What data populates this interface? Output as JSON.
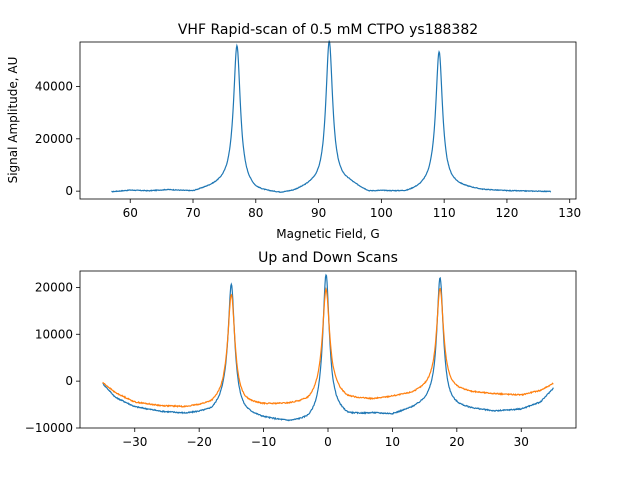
{
  "chart_data": [
    {
      "type": "line",
      "title": "VHF Rapid-scan of 0.5 mM CTPO ys188382",
      "xlabel": "Magnetic Field, G",
      "ylabel": "Signal Amplitude, AU",
      "xlim": [
        52,
        131
      ],
      "ylim": [
        -3000,
        57000
      ],
      "xticks": [
        60,
        70,
        80,
        90,
        100,
        110,
        120,
        130
      ],
      "yticks": [
        0,
        20000,
        40000
      ],
      "grid": false,
      "series": [
        {
          "color": "#1f77b4",
          "x_range": [
            57,
            127
          ],
          "baseline": [
            [
              57,
              -300
            ],
            [
              60,
              300
            ],
            [
              63,
              0
            ],
            [
              66,
              400
            ],
            [
              70,
              -300
            ],
            [
              73,
              1500
            ],
            [
              76,
              3500
            ],
            [
              80,
              -400
            ],
            [
              84,
              -1200
            ],
            [
              86,
              -500
            ],
            [
              89,
              1800
            ],
            [
              93,
              3000
            ],
            [
              95,
              2500
            ],
            [
              98,
              -600
            ],
            [
              100,
              -300
            ],
            [
              104,
              -600
            ],
            [
              106,
              600
            ],
            [
              108,
              2500
            ],
            [
              112,
              1500
            ],
            [
              116,
              300
            ],
            [
              120,
              0
            ],
            [
              124,
              -100
            ],
            [
              127,
              -200
            ]
          ],
          "peaks": [
            {
              "center": 77.0,
              "height": 53000,
              "width": 0.65
            },
            {
              "center": 91.7,
              "height": 54500,
              "width": 0.65
            },
            {
              "center": 109.2,
              "height": 51000,
              "width": 0.65
            }
          ]
        }
      ]
    },
    {
      "type": "line",
      "title": "Up and Down Scans",
      "xlabel": "",
      "ylabel": "",
      "xlim": [
        -38.5,
        38.5
      ],
      "ylim": [
        -10000,
        23500
      ],
      "xticks": [
        -30,
        -20,
        -10,
        0,
        10,
        20,
        30
      ],
      "yticks": [
        -10000,
        0,
        10000,
        20000
      ],
      "grid": false,
      "series": [
        {
          "color": "#1f77b4",
          "x_range": [
            -35,
            35
          ],
          "baseline": [
            [
              -35,
              -500
            ],
            [
              -33,
              -3500
            ],
            [
              -30,
              -5500
            ],
            [
              -26,
              -6500
            ],
            [
              -22,
              -7000
            ],
            [
              -18,
              -6500
            ],
            [
              -16,
              -4500
            ],
            [
              -13,
              -7000
            ],
            [
              -10,
              -8000
            ],
            [
              -6,
              -8800
            ],
            [
              -3,
              -8500
            ],
            [
              -1,
              -7000
            ],
            [
              1,
              -6500
            ],
            [
              3,
              -7500
            ],
            [
              7,
              -7000
            ],
            [
              10,
              -7200
            ],
            [
              13,
              -6000
            ],
            [
              16,
              -4500
            ],
            [
              19,
              -5500
            ],
            [
              22,
              -6000
            ],
            [
              26,
              -6500
            ],
            [
              30,
              -6000
            ],
            [
              33,
              -4500
            ],
            [
              35,
              -1500
            ]
          ],
          "peaks": [
            {
              "center": -15.0,
              "height": 26000,
              "width": 0.6
            },
            {
              "center": -0.3,
              "height": 29500,
              "width": 0.6
            },
            {
              "center": 17.4,
              "height": 27000,
              "width": 0.6
            }
          ]
        },
        {
          "color": "#ff7f0e",
          "x_range": [
            -35,
            35
          ],
          "baseline": [
            [
              -35,
              -300
            ],
            [
              -33,
              -2500
            ],
            [
              -30,
              -4500
            ],
            [
              -26,
              -5300
            ],
            [
              -22,
              -5600
            ],
            [
              -18,
              -5000
            ],
            [
              -16,
              -3500
            ],
            [
              -13,
              -5000
            ],
            [
              -10,
              -5200
            ],
            [
              -6,
              -5000
            ],
            [
              -3,
              -4500
            ],
            [
              -1,
              -2500
            ],
            [
              1,
              -2500
            ],
            [
              3,
              -3800
            ],
            [
              7,
              -4000
            ],
            [
              10,
              -3400
            ],
            [
              13,
              -2800
            ],
            [
              16,
              -1500
            ],
            [
              19,
              -2000
            ],
            [
              22,
              -2500
            ],
            [
              26,
              -2800
            ],
            [
              30,
              -3000
            ],
            [
              33,
              -2000
            ],
            [
              35,
              -500
            ]
          ],
          "peaks": [
            {
              "center": -15.0,
              "height": 22500,
              "width": 0.65
            },
            {
              "center": -0.3,
              "height": 22000,
              "width": 0.65
            },
            {
              "center": 17.4,
              "height": 21500,
              "width": 0.65
            }
          ]
        }
      ]
    }
  ]
}
